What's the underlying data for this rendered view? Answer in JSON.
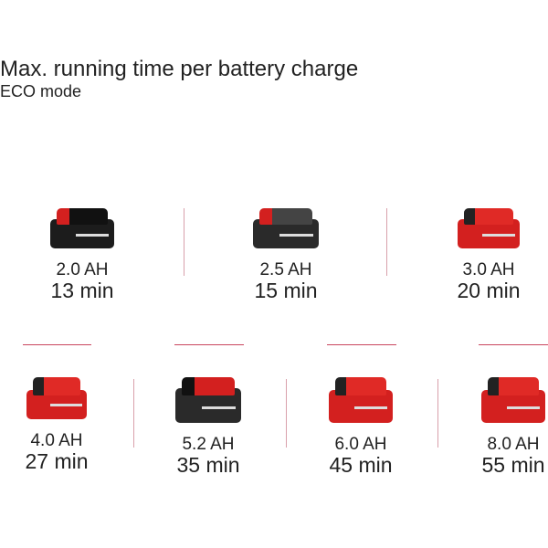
{
  "header": {
    "title": "Max. running time per battery charge",
    "subtitle": "ECO mode"
  },
  "batteries": [
    {
      "capacity": "2.0 AH",
      "runtime": "13 min",
      "color": "#1c1c1c"
    },
    {
      "capacity": "2.5 AH",
      "runtime": "15 min",
      "color": "#2a2a2a"
    },
    {
      "capacity": "3.0 AH",
      "runtime": "20 min",
      "color": "#d3201f"
    },
    {
      "capacity": "4.0 AH",
      "runtime": "27 min",
      "color": "#d3201f"
    },
    {
      "capacity": "5.2 AH",
      "runtime": "35 min",
      "color": "#2a2a2a"
    },
    {
      "capacity": "6.0 AH",
      "runtime": "45 min",
      "color": "#d3201f"
    },
    {
      "capacity": "8.0 AH",
      "runtime": "55 min",
      "color": "#d3201f"
    }
  ],
  "colors": {
    "accent": "#c9465e",
    "battery_red": "#d3201f",
    "battery_black": "#1c1c1c"
  }
}
